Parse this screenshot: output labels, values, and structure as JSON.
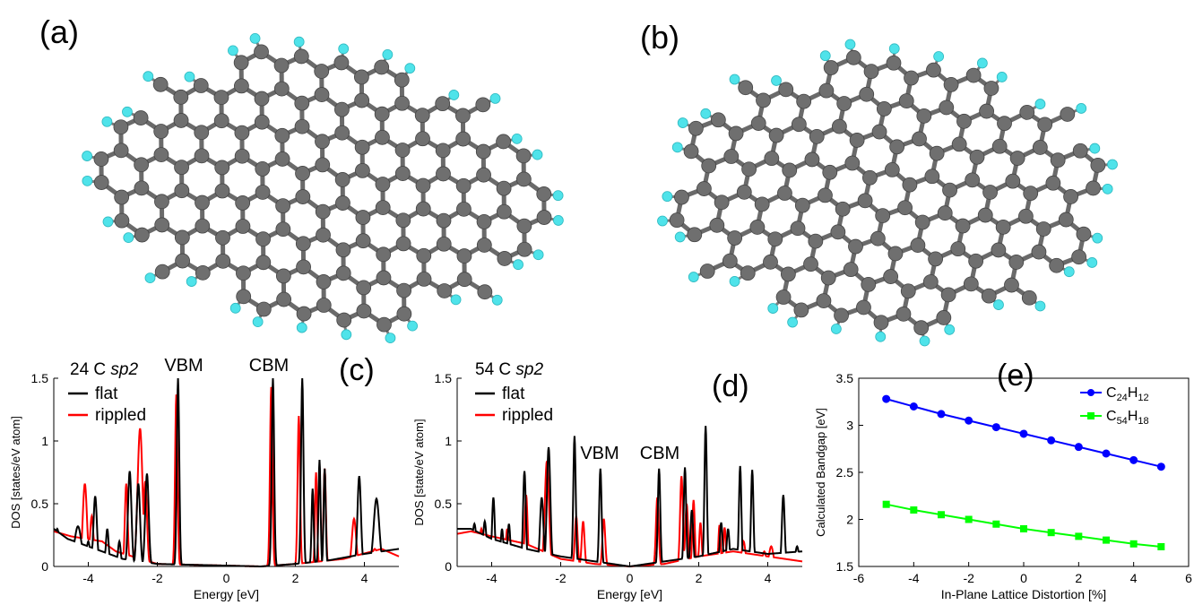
{
  "panels": {
    "a": {
      "label": "(a)"
    },
    "b": {
      "label": "(b)"
    }
  },
  "colors": {
    "carbon": "#6f6f6f",
    "hydrogen": "#4fe3ea",
    "flat": "#000000",
    "rippled": "#ff0000",
    "c24": "#0000ff",
    "c54": "#00ff00"
  },
  "chart_data": [
    {
      "panel": "(c)",
      "type": "line",
      "annotation": "24 C",
      "annotation_italic": "sp2",
      "xlabel": "Energy [eV]",
      "ylabel": "DOS [states/eV atom]",
      "xlim": [
        -5,
        5
      ],
      "ylim": [
        0,
        1.5
      ],
      "xticks": [
        -4,
        -2,
        0,
        2,
        4
      ],
      "yticks": [
        0,
        0.5,
        1,
        1.5
      ],
      "ytick_labels": [
        "0",
        "0.5",
        "1",
        "1.5"
      ],
      "markers": [
        {
          "text": "VBM",
          "x": -1.4
        },
        {
          "text": "CBM",
          "x": 1.3
        }
      ],
      "legend": [
        "flat",
        "rippled"
      ],
      "series": [
        {
          "name": "flat",
          "peaks": [
            [
              -4.9,
              0.07,
              0.3
            ],
            [
              -4.3,
              0.1,
              0.32
            ],
            [
              -4.0,
              0.05,
              0.2
            ],
            [
              -3.8,
              0.05,
              0.56
            ],
            [
              -3.45,
              0.04,
              0.3
            ],
            [
              -3.1,
              0.04,
              0.2
            ],
            [
              -2.8,
              0.05,
              0.76
            ],
            [
              -2.55,
              0.05,
              0.66
            ],
            [
              -2.3,
              0.05,
              0.74
            ],
            [
              -1.4,
              0.035,
              1.5
            ],
            [
              1.35,
              0.035,
              1.5
            ],
            [
              2.2,
              0.035,
              1.5
            ],
            [
              2.5,
              0.03,
              0.62
            ],
            [
              2.7,
              0.03,
              0.85
            ],
            [
              2.85,
              0.03,
              0.78
            ],
            [
              3.85,
              0.05,
              0.72
            ],
            [
              4.35,
              0.08,
              0.54
            ]
          ],
          "base": [
            [
              -5,
              0.3
            ],
            [
              -4.6,
              0.22
            ],
            [
              -3.6,
              0.12
            ],
            [
              -3.0,
              0.06
            ],
            [
              -2.0,
              0.02
            ],
            [
              1.0,
              0.0
            ],
            [
              2.0,
              0.02
            ],
            [
              3.0,
              0.05
            ],
            [
              4.0,
              0.1
            ],
            [
              5.0,
              0.14
            ]
          ]
        },
        {
          "name": "rippled",
          "peaks": [
            [
              -4.1,
              0.06,
              0.66
            ],
            [
              -3.9,
              0.05,
              0.4
            ],
            [
              -2.9,
              0.04,
              0.66
            ],
            [
              -2.5,
              0.07,
              1.1
            ],
            [
              -2.35,
              0.05,
              0.68
            ],
            [
              -1.45,
              0.035,
              1.37
            ],
            [
              1.3,
              0.035,
              1.43
            ],
            [
              2.1,
              0.035,
              1.2
            ],
            [
              2.6,
              0.03,
              0.75
            ],
            [
              2.85,
              0.035,
              0.78
            ],
            [
              3.7,
              0.06,
              0.38
            ],
            [
              4.3,
              0.08,
              0.14
            ]
          ],
          "base": [
            [
              -5,
              0.28
            ],
            [
              -4.5,
              0.24
            ],
            [
              -3.6,
              0.2
            ],
            [
              -3.2,
              0.12
            ],
            [
              -2.0,
              0.02
            ],
            [
              1.0,
              0.0
            ],
            [
              2.0,
              0.02
            ],
            [
              3.4,
              0.06
            ],
            [
              4.5,
              0.14
            ],
            [
              5.0,
              0.08
            ]
          ]
        }
      ]
    },
    {
      "panel": "(d)",
      "type": "line",
      "annotation": "54 C",
      "annotation_italic": "sp2",
      "xlabel": "Energy [eV]",
      "ylabel": "DOS [state/eV atom]",
      "xlim": [
        -5,
        5
      ],
      "ylim": [
        0,
        1.5
      ],
      "xticks": [
        -4,
        -2,
        0,
        2,
        4
      ],
      "yticks": [
        0,
        0.5,
        1,
        1.5
      ],
      "ytick_labels": [
        "0",
        "0.5",
        "1",
        "1.5"
      ],
      "markers": [
        {
          "text": "VBM",
          "x": -1.2
        },
        {
          "text": "CBM",
          "x": 1.2
        }
      ],
      "legend": [
        "flat",
        "rippled"
      ],
      "series": [
        {
          "name": "flat",
          "peaks": [
            [
              -4.5,
              0.06,
              0.34
            ],
            [
              -4.2,
              0.05,
              0.36
            ],
            [
              -3.95,
              0.04,
              0.55
            ],
            [
              -3.7,
              0.04,
              0.3
            ],
            [
              -3.5,
              0.04,
              0.34
            ],
            [
              -3.05,
              0.04,
              0.76
            ],
            [
              -2.55,
              0.05,
              0.55
            ],
            [
              -2.35,
              0.05,
              0.95
            ],
            [
              -1.6,
              0.035,
              1.04
            ],
            [
              -0.85,
              0.035,
              0.78
            ],
            [
              0.85,
              0.035,
              0.78
            ],
            [
              1.6,
              0.035,
              0.79
            ],
            [
              1.8,
              0.04,
              0.45
            ],
            [
              2.2,
              0.035,
              1.12
            ],
            [
              2.65,
              0.04,
              0.35
            ],
            [
              2.85,
              0.04,
              0.3
            ],
            [
              3.2,
              0.035,
              0.8
            ],
            [
              3.55,
              0.035,
              0.77
            ],
            [
              4.45,
              0.04,
              0.57
            ],
            [
              4.85,
              0.05,
              0.16
            ]
          ],
          "base": [
            [
              -5,
              0.3
            ],
            [
              -4.6,
              0.3
            ],
            [
              -4.0,
              0.22
            ],
            [
              -3.0,
              0.14
            ],
            [
              -2.0,
              0.08
            ],
            [
              -1.0,
              0.04
            ],
            [
              0.0,
              0.0
            ],
            [
              1.0,
              0.04
            ],
            [
              2.0,
              0.08
            ],
            [
              3.0,
              0.14
            ],
            [
              4.0,
              0.1
            ],
            [
              5.0,
              0.12
            ]
          ]
        },
        {
          "name": "rippled",
          "peaks": [
            [
              -4.3,
              0.05,
              0.3
            ],
            [
              -3.55,
              0.04,
              0.3
            ],
            [
              -3.0,
              0.04,
              0.57
            ],
            [
              -2.4,
              0.06,
              0.84
            ],
            [
              -1.55,
              0.04,
              0.4
            ],
            [
              -1.35,
              0.04,
              0.36
            ],
            [
              -0.75,
              0.04,
              0.38
            ],
            [
              0.8,
              0.04,
              0.55
            ],
            [
              1.5,
              0.04,
              0.72
            ],
            [
              1.65,
              0.04,
              0.5
            ],
            [
              1.85,
              0.035,
              0.53
            ],
            [
              2.05,
              0.035,
              0.35
            ],
            [
              2.6,
              0.03,
              0.33
            ],
            [
              2.75,
              0.035,
              0.31
            ],
            [
              3.3,
              0.05,
              0.2
            ],
            [
              3.9,
              0.05,
              0.12
            ],
            [
              4.1,
              0.06,
              0.16
            ]
          ],
          "base": [
            [
              -5,
              0.26
            ],
            [
              -4.6,
              0.28
            ],
            [
              -4.0,
              0.24
            ],
            [
              -3.0,
              0.18
            ],
            [
              -2.0,
              0.06
            ],
            [
              -1.0,
              0.02
            ],
            [
              0.0,
              0.0
            ],
            [
              1.0,
              0.02
            ],
            [
              2.0,
              0.08
            ],
            [
              3.0,
              0.12
            ],
            [
              4.0,
              0.08
            ],
            [
              5.0,
              0.04
            ]
          ]
        }
      ]
    },
    {
      "panel": "(e)",
      "type": "line",
      "xlabel": "In-Plane Lattice Distortion [%]",
      "ylabel": "Calculated Bandgap [eV]",
      "xlim": [
        -6,
        6
      ],
      "ylim": [
        1.5,
        3.5
      ],
      "xticks": [
        -6,
        -4,
        -2,
        0,
        2,
        4,
        6
      ],
      "yticks": [
        1.5,
        2,
        2.5,
        3,
        3.5
      ],
      "ytick_labels": [
        "1.5",
        "2",
        "2.5",
        "3",
        "3.5"
      ],
      "x": [
        -5,
        -4,
        -3,
        -2,
        -1,
        0,
        1,
        2,
        3,
        4,
        5
      ],
      "series": [
        {
          "name": "C",
          "sub1": "24",
          "mid": "H",
          "sub2": "12",
          "marker": "circle",
          "values": [
            3.28,
            3.2,
            3.12,
            3.05,
            2.98,
            2.91,
            2.84,
            2.77,
            2.7,
            2.63,
            2.56
          ]
        },
        {
          "name": "C",
          "sub1": "54",
          "mid": "H",
          "sub2": "18",
          "marker": "square",
          "values": [
            2.16,
            2.1,
            2.05,
            2.0,
            1.95,
            1.9,
            1.86,
            1.82,
            1.78,
            1.74,
            1.71
          ]
        }
      ]
    }
  ]
}
